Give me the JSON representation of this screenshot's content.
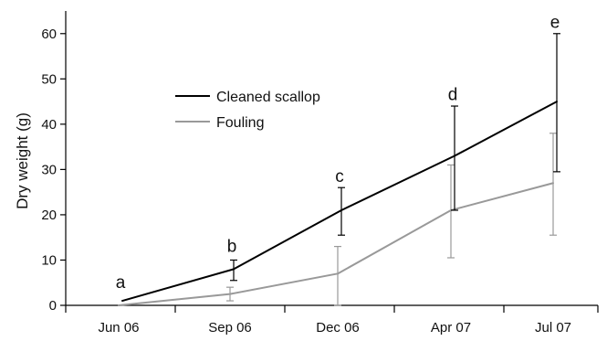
{
  "chart_data": {
    "type": "line",
    "xlabel": "",
    "ylabel": "Dry weight (g)",
    "categories": [
      "Jun 06",
      "Sep 06",
      "Dec 06",
      "Apr 07",
      "Jul 07"
    ],
    "ylim": [
      0,
      65
    ],
    "yticks": [
      0,
      10,
      20,
      30,
      40,
      50,
      60
    ],
    "grid": false,
    "legend_position": "upper-left",
    "series": [
      {
        "name": "Cleaned scallop",
        "color": "#000000",
        "values": [
          1,
          8,
          21,
          33,
          45
        ],
        "err_low": [
          1,
          5.5,
          15.5,
          21,
          29.5
        ],
        "err_high": [
          1,
          10,
          26,
          44,
          60
        ]
      },
      {
        "name": "Fouling",
        "color": "#999999",
        "values": [
          0,
          2.5,
          7,
          21,
          27
        ],
        "err_low": [
          0,
          1,
          0,
          10.5,
          15.5
        ],
        "err_high": [
          0,
          4,
          13,
          31,
          38
        ]
      }
    ],
    "annotations": [
      {
        "category": "Jun 06",
        "text": "a",
        "y": 5
      },
      {
        "category": "Sep 06",
        "text": "b",
        "y": 13
      },
      {
        "category": "Dec 06",
        "text": "c",
        "y": 28.5
      },
      {
        "category": "Apr 07",
        "text": "d",
        "y": 46.5
      },
      {
        "category": "Jul 07",
        "text": "e",
        "y": 62.5
      }
    ]
  }
}
